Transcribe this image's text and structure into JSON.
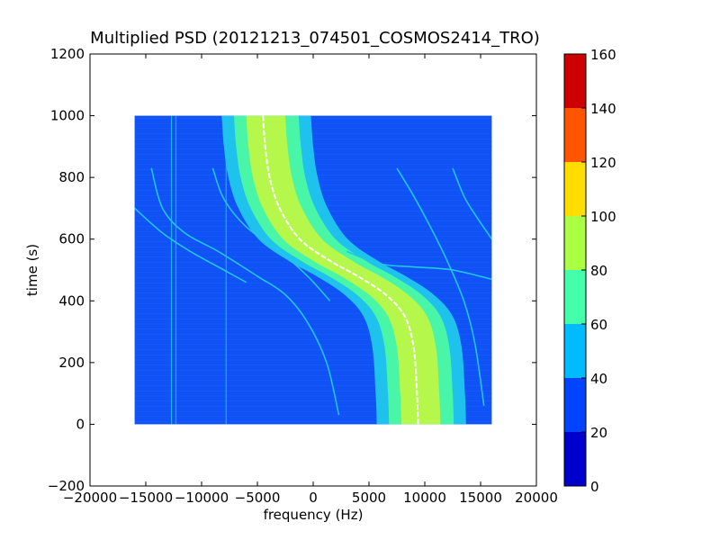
{
  "chart_data": {
    "type": "heatmap",
    "title": "Multiplied PSD (20121213_074501_COSMOS2414_TRO)",
    "xlabel": "frequency (Hz)",
    "ylabel": "time (s)",
    "xlim": [
      -20000,
      20000
    ],
    "ylim": [
      -200,
      1200
    ],
    "xticks": [
      -20000,
      -15000,
      -10000,
      -5000,
      0,
      5000,
      10000,
      15000,
      20000
    ],
    "xtick_labels": [
      "−20000",
      "−15000",
      "−10000",
      "−5000",
      "0",
      "5000",
      "10000",
      "15000",
      "20000"
    ],
    "yticks": [
      -200,
      0,
      200,
      400,
      600,
      800,
      1000,
      1200
    ],
    "ytick_labels": [
      "−200",
      "0",
      "200",
      "400",
      "600",
      "800",
      "1000",
      "1200"
    ],
    "data_extent": {
      "x": [
        -16000,
        16000
      ],
      "y": [
        0,
        1000
      ]
    },
    "grid": false,
    "background_level_range": [
      20,
      40
    ],
    "main_trace": {
      "description_values": "frequency at time",
      "points": [
        {
          "time": 1000,
          "frequency": -4500
        },
        {
          "time": 900,
          "frequency": -4300
        },
        {
          "time": 800,
          "frequency": -3900
        },
        {
          "time": 700,
          "frequency": -3000
        },
        {
          "time": 600,
          "frequency": -1200
        },
        {
          "time": 530,
          "frequency": 1500
        },
        {
          "time": 480,
          "frequency": 4000
        },
        {
          "time": 420,
          "frequency": 6500
        },
        {
          "time": 350,
          "frequency": 8200
        },
        {
          "time": 250,
          "frequency": 9000
        },
        {
          "time": 100,
          "frequency": 9300
        },
        {
          "time": 0,
          "frequency": 9400
        }
      ],
      "peak_level": 100
    },
    "colorbar": {
      "ticks": [
        0,
        20,
        40,
        60,
        80,
        100,
        120,
        140,
        160
      ],
      "tick_labels": [
        "0",
        "20",
        "40",
        "60",
        "80",
        "100",
        "120",
        "140",
        "160"
      ],
      "colors": [
        "#0000cc",
        "#0044ff",
        "#00bbff",
        "#44ffaa",
        "#aaff44",
        "#ffdd00",
        "#ff5500",
        "#cc0000"
      ]
    },
    "band_colors": {
      "background": "#0f52f5",
      "band_40_60": "#1ec2ec",
      "band_60_80": "#49f5a6",
      "band_80_100": "#b5f74b",
      "peak": "#ffffff",
      "faint_line": "#22c6e8"
    }
  }
}
